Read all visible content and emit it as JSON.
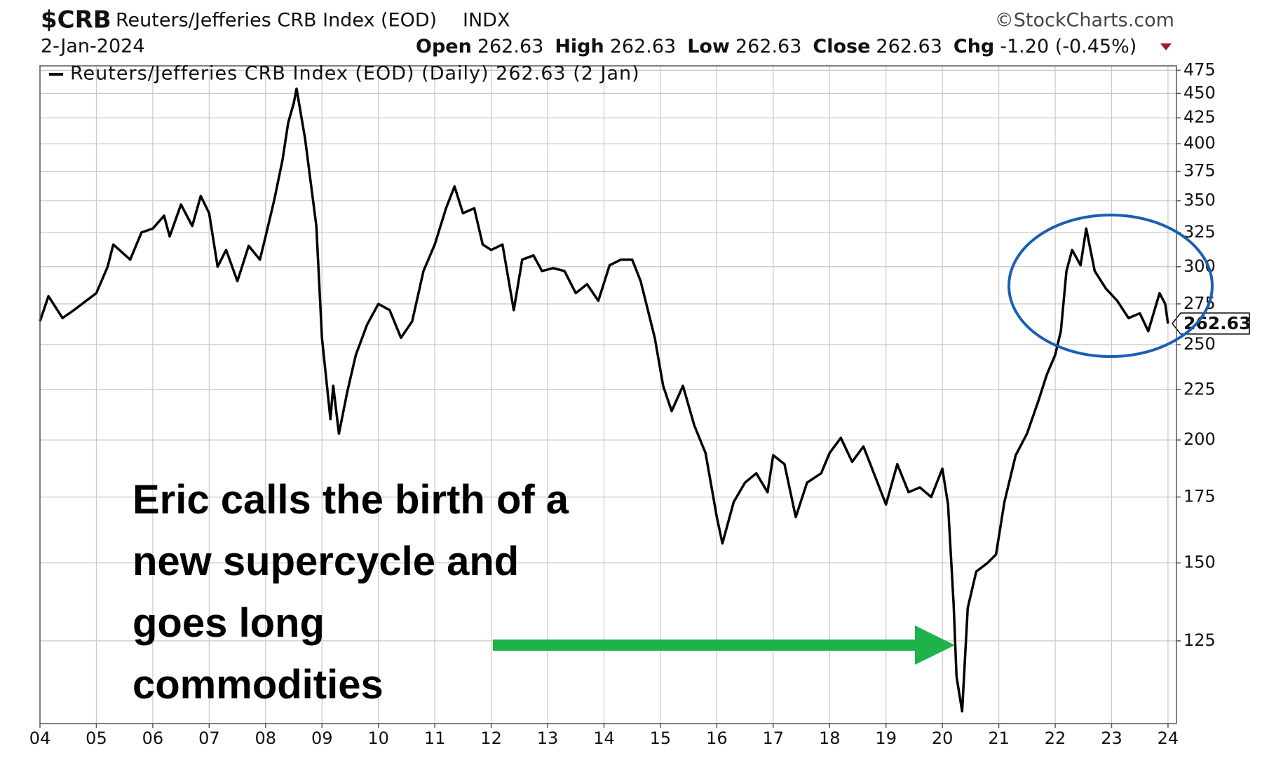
{
  "chart_data": {
    "type": "line",
    "symbol": "$CRB",
    "title": "Reuters/Jefferies CRB Index (EOD)",
    "exchange": "INDX",
    "source": "©StockCharts.com",
    "date": "2-Jan-2024",
    "quote": [
      {
        "label": "Open",
        "value": 262.63
      },
      {
        "label": "High",
        "value": 262.63
      },
      {
        "label": "Low",
        "value": 262.63
      },
      {
        "label": "Close",
        "value": 262.63
      },
      {
        "label": "Chg",
        "value": "-1.20 (-0.45%)"
      }
    ],
    "annotation": [
      "Eric calls the birth of a",
      "new supercycle and",
      "goes long",
      "commodities"
    ],
    "log_scale": true,
    "grid": true,
    "xlim": [
      2004,
      2024.15
    ],
    "ylim": [
      103,
      480
    ],
    "xticks": [
      {
        "value": 2004,
        "label": "04"
      },
      {
        "value": 2005,
        "label": "05"
      },
      {
        "value": 2006,
        "label": "06"
      },
      {
        "value": 2007,
        "label": "07"
      },
      {
        "value": 2008,
        "label": "08"
      },
      {
        "value": 2009,
        "label": "09"
      },
      {
        "value": 2010,
        "label": "10"
      },
      {
        "value": 2011,
        "label": "11"
      },
      {
        "value": 2012,
        "label": "12"
      },
      {
        "value": 2013,
        "label": "13"
      },
      {
        "value": 2014,
        "label": "14"
      },
      {
        "value": 2015,
        "label": "15"
      },
      {
        "value": 2016,
        "label": "16"
      },
      {
        "value": 2017,
        "label": "17"
      },
      {
        "value": 2018,
        "label": "18"
      },
      {
        "value": 2019,
        "label": "19"
      },
      {
        "value": 2020,
        "label": "20"
      },
      {
        "value": 2021,
        "label": "21"
      },
      {
        "value": 2022,
        "label": "22"
      },
      {
        "value": 2023,
        "label": "23"
      },
      {
        "value": 2024,
        "label": "24"
      }
    ],
    "yticks": [
      125,
      150,
      175,
      200,
      225,
      250,
      275,
      300,
      325,
      350,
      375,
      400,
      425,
      450,
      475
    ],
    "series": [
      {
        "name": "Reuters/Jefferies CRB Index (EOD) (Daily) 262.63 (2 Jan)",
        "color": "#000000",
        "x": [
          2004.0,
          2004.15,
          2004.4,
          2004.6,
          2005.0,
          2005.2,
          2005.3,
          2005.6,
          2005.8,
          2006.0,
          2006.2,
          2006.3,
          2006.5,
          2006.7,
          2006.85,
          2007.0,
          2007.15,
          2007.3,
          2007.5,
          2007.7,
          2007.9,
          2008.0,
          2008.15,
          2008.3,
          2008.4,
          2008.5,
          2008.55,
          2008.7,
          2008.9,
          2009.0,
          2009.15,
          2009.2,
          2009.3,
          2009.45,
          2009.6,
          2009.8,
          2010.0,
          2010.2,
          2010.4,
          2010.6,
          2010.8,
          2011.0,
          2011.2,
          2011.35,
          2011.5,
          2011.7,
          2011.85,
          2012.0,
          2012.2,
          2012.4,
          2012.55,
          2012.75,
          2012.9,
          2013.1,
          2013.3,
          2013.5,
          2013.7,
          2013.9,
          2014.1,
          2014.3,
          2014.5,
          2014.65,
          2014.9,
          2015.05,
          2015.2,
          2015.4,
          2015.6,
          2015.8,
          2016.0,
          2016.1,
          2016.3,
          2016.5,
          2016.7,
          2016.9,
          2017.0,
          2017.2,
          2017.4,
          2017.6,
          2017.85,
          2018.0,
          2018.2,
          2018.4,
          2018.6,
          2018.85,
          2019.0,
          2019.2,
          2019.4,
          2019.6,
          2019.8,
          2020.0,
          2020.1,
          2020.2,
          2020.25,
          2020.35,
          2020.45,
          2020.6,
          2020.8,
          2020.95,
          2021.1,
          2021.3,
          2021.5,
          2021.7,
          2021.85,
          2022.0,
          2022.1,
          2022.2,
          2022.3,
          2022.45,
          2022.55,
          2022.7,
          2022.9,
          2023.1,
          2023.3,
          2023.5,
          2023.65,
          2023.85,
          2023.95,
          2024.0
        ],
        "values": [
          264,
          280,
          266,
          271,
          282,
          300,
          316,
          305,
          325,
          328,
          338,
          322,
          347,
          330,
          354,
          340,
          300,
          312,
          290,
          315,
          305,
          322,
          350,
          385,
          420,
          440,
          455,
          405,
          330,
          254,
          210,
          227,
          203,
          224,
          244,
          262,
          275,
          271,
          254,
          264,
          297,
          316,
          344,
          362,
          340,
          344,
          316,
          312,
          316,
          271,
          305,
          308,
          297,
          299,
          297,
          282,
          288,
          277,
          301,
          305,
          305,
          290,
          254,
          227,
          214,
          227,
          207,
          194,
          167,
          157,
          173,
          181,
          185,
          177,
          193,
          189,
          167,
          181,
          185,
          194,
          201,
          190,
          197,
          181,
          172,
          189,
          177,
          179,
          175,
          187,
          172,
          136,
          115,
          106,
          135,
          147,
          150,
          153,
          173,
          193,
          203,
          219,
          233,
          244,
          258,
          297,
          312,
          301,
          328,
          297,
          285,
          277,
          266,
          269,
          258,
          282,
          275,
          262.63
        ]
      }
    ]
  }
}
